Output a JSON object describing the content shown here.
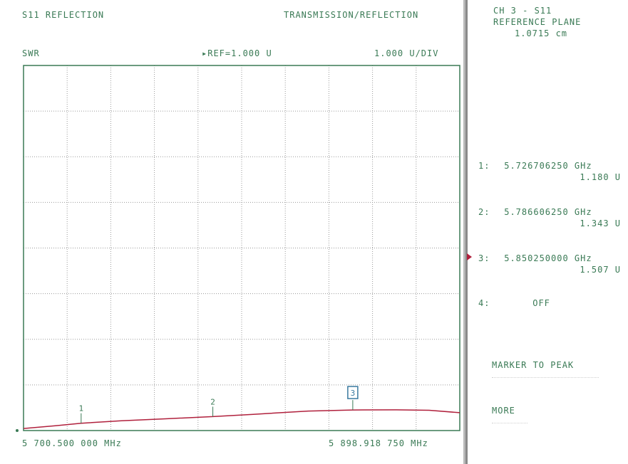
{
  "screen": {
    "title_left": "S11 REFLECTION",
    "title_right": "TRANSMISSION/REFLECTION",
    "format": "SWR",
    "reference": "▸REF=1.000 U",
    "scale": "1.000 U/DIV",
    "start_freq": "5 700.500 000 MHz",
    "stop_freq": "5 898.918 750 MHz"
  },
  "right_panel": {
    "channel": "CH 3 - S11",
    "ref_plane_label": "REFERENCE PLANE",
    "ref_plane_value": "1.0715 cm",
    "markers": [
      {
        "index": "1:",
        "freq": "5.726706250 GHz",
        "value": "1.180 U"
      },
      {
        "index": "2:",
        "freq": "5.786606250 GHz",
        "value": "1.343 U"
      },
      {
        "index": "3:",
        "freq": "5.850250000 GHz",
        "value": "1.507 U"
      },
      {
        "index": "4:",
        "freq": "OFF",
        "value": ""
      }
    ],
    "active_marker": 3,
    "softkeys": [
      "MARKER TO PEAK",
      "MORE"
    ]
  },
  "chart_data": {
    "type": "line",
    "grid": true,
    "x_range_mhz": [
      5700.5,
      5898.91875
    ],
    "ylabel": "SWR",
    "ylim": [
      1.0,
      10.0
    ],
    "y_reference": 1.0,
    "y_per_division": 1.0,
    "series": [
      {
        "x": [
          5700.5,
          5715,
          5726.706,
          5745,
          5765,
          5786.606,
          5805,
          5830,
          5850.25,
          5870,
          5885,
          5898.91875
        ],
        "y": [
          1.05,
          1.12,
          1.18,
          1.24,
          1.29,
          1.343,
          1.4,
          1.48,
          1.507,
          1.51,
          1.5,
          1.44
        ]
      }
    ],
    "markers": [
      {
        "label": "1",
        "x": 5726.706,
        "y": 1.18
      },
      {
        "label": "2",
        "x": 5786.606,
        "y": 1.343
      },
      {
        "label": "3",
        "x": 5850.25,
        "y": 1.507,
        "active": true
      }
    ],
    "colors": {
      "trace": "#b0203c",
      "grid": "#9a9a9a",
      "frame": "#3a7a55",
      "text": "#3a7a55"
    }
  }
}
